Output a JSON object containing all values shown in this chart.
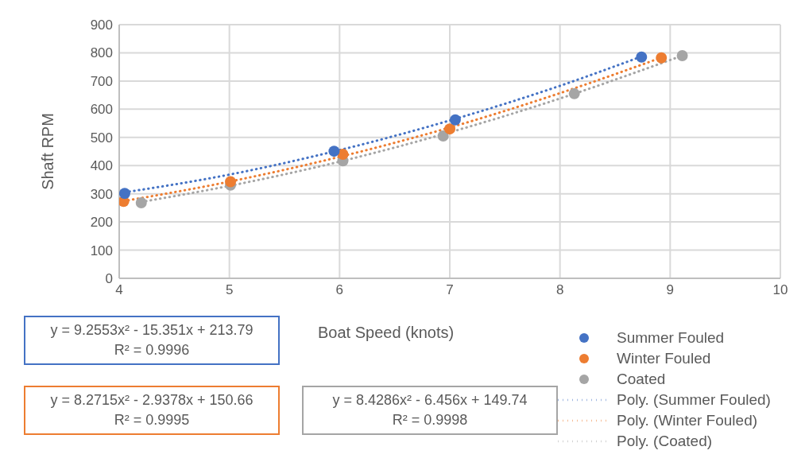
{
  "chart_data": {
    "type": "scatter",
    "xlabel": "Boat Speed (knots)",
    "ylabel": "Shaft RPM",
    "xlim": [
      4,
      10
    ],
    "xticks": [
      4,
      5,
      6,
      7,
      8,
      9,
      10
    ],
    "ylim": [
      0,
      900
    ],
    "yticks": [
      0,
      100,
      200,
      300,
      400,
      500,
      600,
      700,
      800,
      900
    ],
    "grid": true,
    "legend": "bottom right",
    "marker": "circle",
    "series": [
      {
        "name": "Summer Fouled",
        "color": "#4472c4",
        "x": [
          4.05,
          5.95,
          7.05,
          8.74
        ],
        "values": [
          301,
          451,
          562,
          785
        ]
      },
      {
        "name": "Winter Fouled",
        "color": "#ed7d31",
        "x": [
          4.04,
          5.01,
          6.03,
          7.0,
          8.92
        ],
        "values": [
          273,
          343,
          440,
          530,
          782
        ]
      },
      {
        "name": "Coated",
        "color": "#a5a5a5",
        "x": [
          4.2,
          5.01,
          6.03,
          6.94,
          8.13,
          9.11
        ],
        "values": [
          268,
          331,
          417,
          505,
          655,
          790
        ]
      },
      {
        "name": "Poly. (Summer Fouled)",
        "type": "line",
        "line_style": "dotted",
        "marker": "none",
        "color": "#4472c4",
        "x": [
          4.05,
          5,
          6,
          7,
          8,
          8.74
        ],
        "values": [
          305,
          368,
          455,
          560,
          683,
          787
        ]
      },
      {
        "name": "Poly. (Winter Fouled)",
        "type": "line",
        "line_style": "dotted",
        "marker": "none",
        "color": "#ed7d31",
        "x": [
          4.04,
          5,
          6,
          7,
          8,
          8.92
        ],
        "values": [
          274,
          343,
          431,
          535,
          657,
          783
        ]
      },
      {
        "name": "Poly. (Coated)",
        "type": "line",
        "line_style": "dotted",
        "marker": "none",
        "color": "#a5a5a5",
        "x": [
          4.2,
          5,
          6,
          7,
          8,
          9.11
        ],
        "values": [
          271,
          328,
          414,
          518,
          638,
          790
        ]
      }
    ],
    "annotations": [
      "y = 9.2553x² - 15.351x + 213.79",
      "R² = 0.9996",
      "y = 8.2715x² - 2.9378x + 150.66",
      "R² = 0.9995",
      "y = 8.4286x² - 6.456x + 149.74",
      "R² = 0.9998"
    ]
  }
}
